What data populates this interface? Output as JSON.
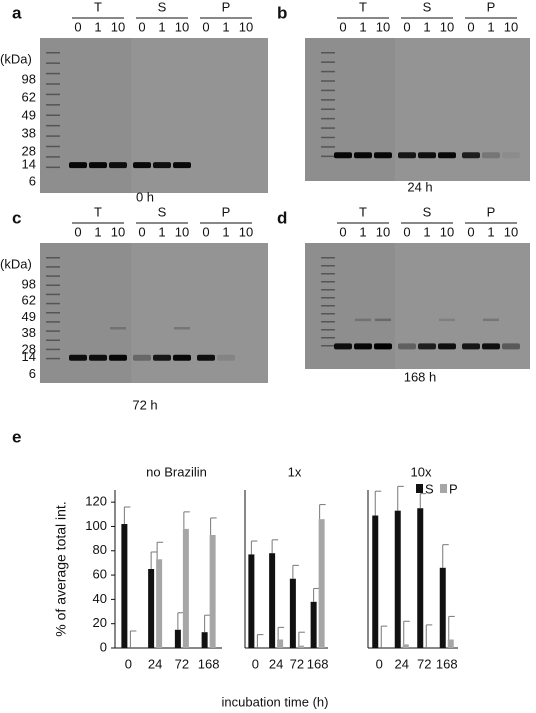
{
  "panels": [
    {
      "label": "a",
      "groups": [
        "T",
        "S",
        "P"
      ],
      "lanes": [
        "0",
        "1",
        "10",
        "0",
        "1",
        "10",
        "0",
        "1",
        "10"
      ],
      "kda_unit": "(kDa)",
      "kda": [
        98,
        62,
        49,
        38,
        28,
        14,
        6
      ],
      "time": "0 h"
    },
    {
      "label": "b",
      "groups": [
        "T",
        "S",
        "P"
      ],
      "lanes": [
        "0",
        "1",
        "10",
        "0",
        "1",
        "10",
        "0",
        "1",
        "10"
      ],
      "time": "24 h"
    },
    {
      "label": "c",
      "groups": [
        "T",
        "S",
        "P"
      ],
      "lanes": [
        "0",
        "1",
        "10",
        "0",
        "1",
        "10",
        "0",
        "1",
        "10"
      ],
      "kda_unit": "(kDa)",
      "kda": [
        98,
        62,
        49,
        38,
        28,
        14,
        6
      ],
      "time": "72 h"
    },
    {
      "label": "d",
      "groups": [
        "T",
        "S",
        "P"
      ],
      "lanes": [
        "0",
        "1",
        "10",
        "0",
        "1",
        "10",
        "0",
        "1",
        "10"
      ],
      "time": "168 h"
    }
  ],
  "figure_label": "e",
  "chart_data": [
    {
      "type": "bar",
      "title": "no Brazilin",
      "ylabel": "% of average total int.",
      "categories": [
        "0",
        "24",
        "72",
        "168"
      ],
      "series": [
        {
          "color": "#111111",
          "values": [
            102,
            65,
            15,
            13
          ],
          "errors": [
            14,
            14,
            14,
            14
          ]
        },
        {
          "color": "#a6a6a6",
          "values": [
            0,
            73,
            98,
            93
          ],
          "errors": [
            14,
            14,
            14,
            14
          ]
        }
      ],
      "ylim": [
        0,
        130
      ],
      "yticks": [
        0,
        20,
        40,
        60,
        80,
        100,
        120
      ]
    },
    {
      "type": "bar",
      "title": "1x",
      "xlabel": "incubation time (h)",
      "categories": [
        "0",
        "24",
        "72",
        "168"
      ],
      "series": [
        {
          "color": "#111111",
          "values": [
            77,
            78,
            57,
            38
          ],
          "errors": [
            11,
            11,
            11,
            11
          ]
        },
        {
          "color": "#a6a6a6",
          "values": [
            0,
            7,
            2,
            106
          ],
          "errors": [
            11,
            10,
            11,
            12
          ]
        }
      ],
      "ylim": [
        0,
        130
      ]
    },
    {
      "type": "bar",
      "title": "10x",
      "categories": [
        "0",
        "24",
        "72",
        "168"
      ],
      "series": [
        {
          "name": "S",
          "color": "#111111",
          "values": [
            109,
            113,
            115,
            66
          ],
          "errors": [
            20,
            20,
            12,
            19
          ]
        },
        {
          "name": "P",
          "color": "#a6a6a6",
          "values": [
            0,
            3,
            0,
            7
          ],
          "errors": [
            18,
            19,
            19,
            19
          ]
        }
      ],
      "ylim": [
        0,
        130
      ],
      "legend": "upper right"
    }
  ]
}
